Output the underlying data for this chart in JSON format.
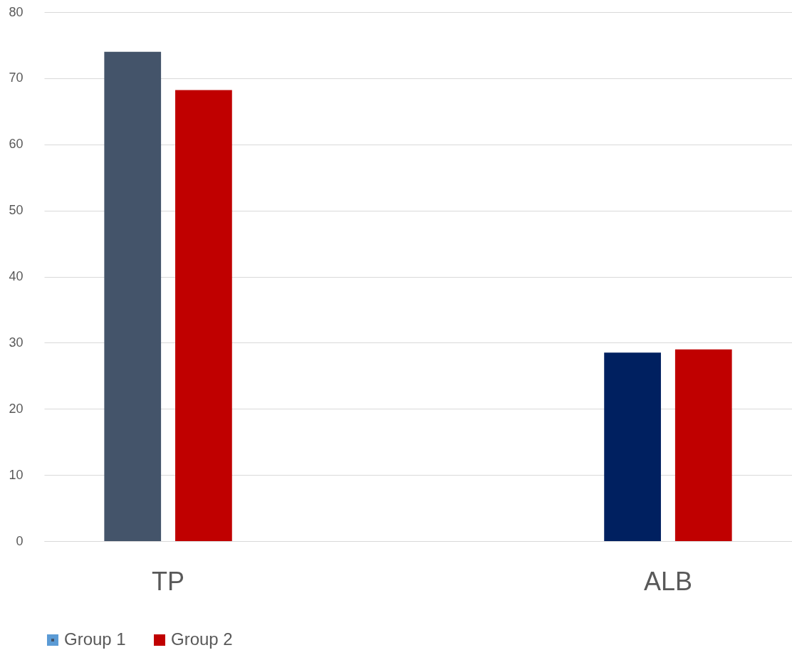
{
  "chart_data": {
    "type": "bar",
    "categories": [
      "TP",
      "ALB"
    ],
    "series": [
      {
        "name": "Group 1",
        "color": "#5b9bd5",
        "colors": [
          "#44546a",
          "#002060"
        ],
        "values": [
          74.0,
          28.5
        ]
      },
      {
        "name": "Group 2",
        "color": "#c00000",
        "values": [
          68.2,
          29.0
        ]
      }
    ],
    "ylim": [
      0,
      80
    ],
    "yticks": [
      0,
      10,
      20,
      30,
      40,
      50,
      60,
      70,
      80
    ],
    "grid": "y",
    "legend": "bottom"
  }
}
